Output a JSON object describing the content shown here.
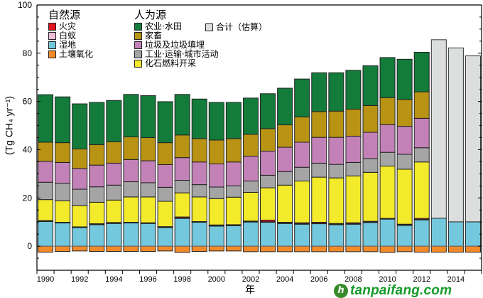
{
  "chart_data": {
    "type": "bar",
    "stacked": true,
    "title": "",
    "xlabel": "年",
    "ylabel": "(Tg CH₄ yr⁻¹)",
    "ylim": [
      -10,
      100
    ],
    "yticks": [
      0,
      20,
      40,
      60,
      80,
      100
    ],
    "xtick_labels": [
      "1990",
      "1992",
      "1994",
      "1996",
      "1998",
      "2000",
      "2002",
      "2004",
      "2006",
      "2008",
      "2010",
      "2012",
      "2014"
    ],
    "grid": false,
    "legend_placement": "top-left",
    "categories": [
      "1990",
      "1991",
      "1992",
      "1993",
      "1994",
      "1995",
      "1996",
      "1997",
      "1998",
      "1999",
      "2000",
      "2001",
      "2002",
      "2003",
      "2004",
      "2005",
      "2006",
      "2007",
      "2008",
      "2009",
      "2010",
      "2011",
      "2012",
      "2013",
      "2014",
      "2015"
    ],
    "legend_groups": [
      {
        "title": "自然源",
        "items": [
          "fire",
          "termites",
          "wetlands",
          "soil"
        ]
      },
      {
        "title": "人为源",
        "items": [
          "agriculture",
          "livestock",
          "waste",
          "industry",
          "fossil"
        ]
      }
    ],
    "series": [
      {
        "key": "soil",
        "name": "土壤氧化",
        "color": "#f28a2a",
        "values": [
          -2.5,
          -2.2,
          -2.0,
          -2.2,
          -2.2,
          -2.2,
          -2.2,
          -2.0,
          -2.6,
          -2.2,
          -2.0,
          -2.0,
          -2.3,
          -2.3,
          -2.3,
          -2.3,
          -2.3,
          -2.3,
          -2.3,
          -2.3,
          -2.6,
          -2.3,
          -2.5,
          -2.5,
          -2.5,
          -2.5
        ]
      },
      {
        "key": "wetlands",
        "name": "湿地",
        "color": "#74c8dd",
        "values": [
          10.2,
          9.6,
          7.7,
          8.9,
          9.4,
          9.6,
          9.4,
          7.7,
          11.5,
          9.9,
          8.3,
          8.5,
          10.0,
          9.9,
          9.4,
          9.1,
          9.3,
          8.9,
          9.1,
          9.8,
          11.2,
          8.6,
          10.9,
          11.6,
          10.1,
          10.1
        ]
      },
      {
        "key": "termites",
        "name": "白蚁",
        "color": "#f0bcd6",
        "values": [
          0.2,
          0.2,
          0.2,
          0.2,
          0.2,
          0.2,
          0.2,
          0.2,
          0.2,
          0.2,
          0.2,
          0.2,
          0.2,
          0.2,
          0.2,
          0.2,
          0.2,
          0.2,
          0.2,
          0.2,
          0.2,
          0.2,
          0.2,
          null,
          null,
          null
        ]
      },
      {
        "key": "fire",
        "name": "火灾",
        "color": "#e0141c",
        "values": [
          0.2,
          0.1,
          0.1,
          0.2,
          0.2,
          0.1,
          0.1,
          0.2,
          0.4,
          0.1,
          0.3,
          0.2,
          0.2,
          0.7,
          0.3,
          0.4,
          0.4,
          0.3,
          0.4,
          0.3,
          0.1,
          0.3,
          0.4,
          null,
          null,
          null
        ]
      },
      {
        "key": "fossil",
        "name": "化石燃料开采",
        "color": "#f2ea2a",
        "values": [
          8.7,
          8.9,
          8.8,
          8.9,
          9.3,
          10.5,
          10.7,
          10.5,
          10.0,
          10.2,
          10.9,
          11.4,
          11.9,
          13.4,
          15.4,
          17.3,
          18.7,
          18.9,
          19.4,
          20.3,
          21.7,
          22.8,
          23.4,
          null,
          null,
          null
        ]
      },
      {
        "key": "industry",
        "name": "工业·运输·城市活动",
        "color": "#a5a5a5",
        "values": [
          7.2,
          7.3,
          6.8,
          6.4,
          6.2,
          6.3,
          5.9,
          5.8,
          5.2,
          5.1,
          4.8,
          4.7,
          4.7,
          5.2,
          5.6,
          5.7,
          5.8,
          5.6,
          5.6,
          5.7,
          5.7,
          6.2,
          5.9,
          null,
          null,
          null
        ]
      },
      {
        "key": "waste",
        "name": "垃圾及垃圾填埋",
        "color": "#c281b7",
        "values": [
          8.7,
          8.6,
          8.6,
          9.0,
          9.1,
          9.2,
          9.1,
          9.4,
          9.4,
          9.4,
          9.6,
          9.9,
          10.3,
          10.0,
          10.1,
          10.4,
          10.7,
          11.2,
          10.9,
          10.9,
          11.5,
          11.6,
          12.2,
          null,
          null,
          null
        ]
      },
      {
        "key": "livestock",
        "name": "家畜",
        "color": "#b89314",
        "values": [
          7.9,
          8.2,
          8.1,
          8.5,
          8.9,
          9.4,
          9.6,
          9.1,
          9.4,
          9.7,
          9.9,
          9.7,
          9.1,
          9.3,
          9.3,
          10.5,
          10.7,
          10.9,
          11.2,
          11.1,
          11.2,
          11.1,
          11.0,
          null,
          null,
          null
        ]
      },
      {
        "key": "agriculture",
        "name": "农业·水田",
        "color": "#137c3b",
        "values": [
          19.7,
          19.0,
          18.7,
          17.5,
          17.1,
          17.6,
          17.4,
          17.0,
          16.8,
          16.4,
          15.6,
          15.0,
          15.0,
          14.5,
          15.2,
          15.7,
          16.1,
          15.9,
          16.1,
          16.5,
          16.6,
          16.7,
          16.4,
          null,
          null,
          null
        ]
      }
    ],
    "estimated_total": {
      "name": "合计（估算）",
      "color": "#dcdddd",
      "values": [
        null,
        null,
        null,
        null,
        null,
        null,
        null,
        null,
        null,
        null,
        null,
        null,
        null,
        null,
        null,
        null,
        null,
        null,
        null,
        null,
        null,
        null,
        null,
        85.6,
        82.2,
        78.9
      ]
    }
  },
  "legend": {
    "natural_title": "自然源",
    "anthropogenic_title": "人为源",
    "natural": [
      {
        "label": "火灾",
        "color": "#e0141c"
      },
      {
        "label": "白蚁",
        "color": "#f0bcd6"
      },
      {
        "label": "湿地",
        "color": "#74c8dd"
      },
      {
        "label": "土壤氧化",
        "color": "#f28a2a"
      }
    ],
    "anthropogenic": [
      {
        "label": "农业·水田",
        "color": "#137c3b"
      },
      {
        "label": "家畜",
        "color": "#b89314"
      },
      {
        "label": "垃圾及垃圾填埋",
        "color": "#c281b7"
      },
      {
        "label": "工业·运输·城市活动",
        "color": "#a5a5a5"
      },
      {
        "label": "化石燃料开采",
        "color": "#f2ea2a"
      }
    ],
    "total": {
      "label": "合计（估算）",
      "color": "#dcdddd"
    }
  },
  "watermark": {
    "text": "tanpaifang.com"
  }
}
